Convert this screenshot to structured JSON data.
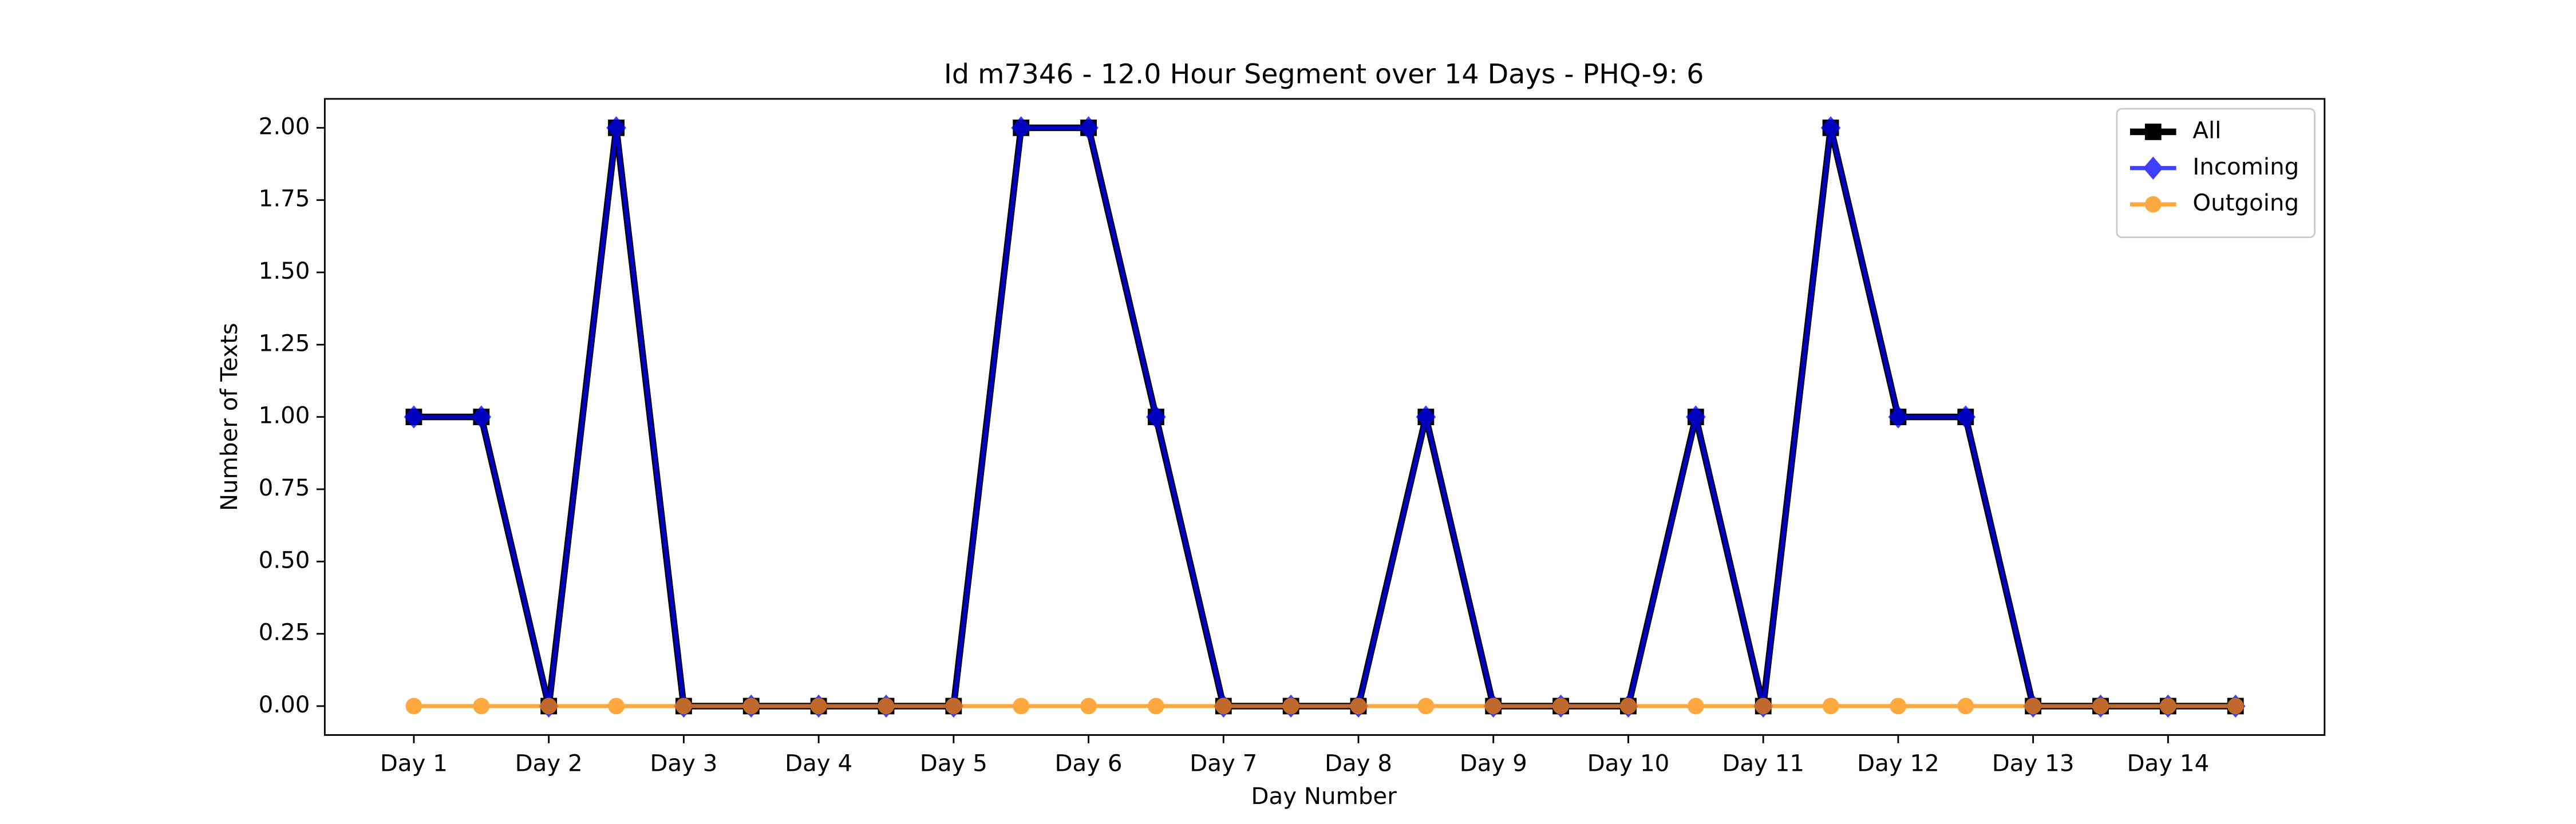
{
  "chart_data": {
    "type": "line",
    "title": "Id m7346 - 12.0 Hour Segment over 14 Days - PHQ-9: 6",
    "x_label": "Day Number",
    "y_label": "Number of Texts",
    "categories": [
      "Day 1",
      null,
      "Day 2",
      null,
      "Day 3",
      null,
      "Day 4",
      null,
      "Day 5",
      null,
      "Day 6",
      null,
      "Day 7",
      null,
      "Day 8",
      null,
      "Day 9",
      null,
      "Day 10",
      null,
      "Day 11",
      null,
      "Day 12",
      null,
      "Day 13",
      null,
      "Day 14",
      null
    ],
    "series": [
      {
        "name": "All",
        "color": "#000000",
        "marker": "square",
        "values": [
          1,
          1,
          0,
          2,
          0,
          0,
          0,
          0,
          0,
          2,
          2,
          1,
          0,
          0,
          0,
          1,
          0,
          0,
          0,
          1,
          0,
          2,
          1,
          1,
          0,
          0,
          0,
          0
        ]
      },
      {
        "name": "Incoming",
        "color": "#0000ff",
        "marker": "diamond",
        "values": [
          1,
          1,
          0,
          2,
          0,
          0,
          0,
          0,
          0,
          2,
          2,
          1,
          0,
          0,
          0,
          1,
          0,
          0,
          0,
          1,
          0,
          2,
          1,
          1,
          0,
          0,
          0,
          0
        ]
      },
      {
        "name": "Outgoing",
        "color": "#ff8c00",
        "marker": "circle",
        "values": [
          0,
          0,
          0,
          0,
          0,
          0,
          0,
          0,
          0,
          0,
          0,
          0,
          0,
          0,
          0,
          0,
          0,
          0,
          0,
          0,
          0,
          0,
          0,
          0,
          0,
          0,
          0,
          0
        ]
      }
    ],
    "ylim": [
      -0.1,
      2.1
    ],
    "yticks": [
      {
        "value": 0,
        "label": "0.00"
      },
      {
        "value": 0.25,
        "label": "0.25"
      },
      {
        "value": 0.5,
        "label": "0.50"
      },
      {
        "value": 0.75,
        "label": "0.75"
      },
      {
        "value": 1,
        "label": "1.00"
      },
      {
        "value": 1.25,
        "label": "1.25"
      },
      {
        "value": 1.5,
        "label": "1.50"
      },
      {
        "value": 1.75,
        "label": "1.75"
      },
      {
        "value": 2,
        "label": "2.00"
      }
    ],
    "legend": "upper right"
  }
}
